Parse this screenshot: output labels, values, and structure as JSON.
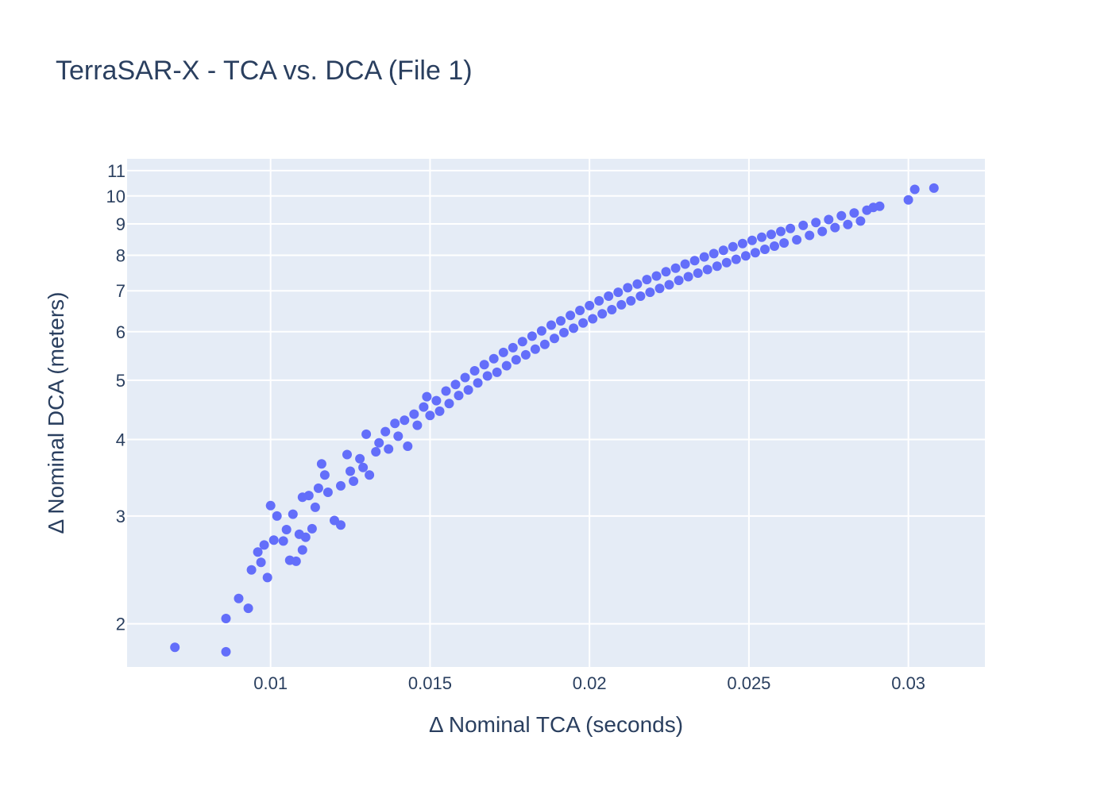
{
  "chart_data": {
    "type": "scatter",
    "title": "TerraSAR-X - TCA vs. DCA (File 1)",
    "xlabel": "Δ Nominal TCA (seconds)",
    "ylabel": "Δ Nominal DCA (meters)",
    "xlim": [
      0.0055,
      0.0324
    ],
    "ylim": [
      1.7,
      11.5
    ],
    "yscale": "log",
    "grid": true,
    "legend": "none",
    "colors": {
      "marker": "#636efa",
      "plot_bg": "#e5ecf6",
      "grid": "#ffffff"
    },
    "x_ticks": [
      {
        "value": 0.01,
        "label": "0.01"
      },
      {
        "value": 0.015,
        "label": "0.015"
      },
      {
        "value": 0.02,
        "label": "0.02"
      },
      {
        "value": 0.025,
        "label": "0.025"
      },
      {
        "value": 0.03,
        "label": "0.03"
      }
    ],
    "y_ticks": [
      {
        "value": 2,
        "label": "2"
      },
      {
        "value": 3,
        "label": "3"
      },
      {
        "value": 4,
        "label": "4"
      },
      {
        "value": 5,
        "label": "5"
      },
      {
        "value": 6,
        "label": "6"
      },
      {
        "value": 7,
        "label": "7"
      },
      {
        "value": 8,
        "label": "8"
      },
      {
        "value": 9,
        "label": "9"
      },
      {
        "value": 10,
        "label": "10"
      },
      {
        "value": 11,
        "label": "11"
      }
    ],
    "series": [
      {
        "points": [
          [
            0.007,
            1.83
          ],
          [
            0.0086,
            1.8
          ],
          [
            0.0086,
            2.04
          ],
          [
            0.009,
            2.2
          ],
          [
            0.0093,
            2.12
          ],
          [
            0.0094,
            2.45
          ],
          [
            0.0096,
            2.62
          ],
          [
            0.0097,
            2.52
          ],
          [
            0.0098,
            2.69
          ],
          [
            0.0099,
            2.38
          ],
          [
            0.01,
            3.12
          ],
          [
            0.0101,
            2.74
          ],
          [
            0.0102,
            3.0
          ],
          [
            0.0104,
            2.73
          ],
          [
            0.0105,
            2.85
          ],
          [
            0.0106,
            2.54
          ],
          [
            0.0107,
            3.02
          ],
          [
            0.0108,
            2.53
          ],
          [
            0.0109,
            2.8
          ],
          [
            0.011,
            3.22
          ],
          [
            0.011,
            2.64
          ],
          [
            0.0111,
            2.77
          ],
          [
            0.0112,
            3.24
          ],
          [
            0.0113,
            2.86
          ],
          [
            0.0114,
            3.1
          ],
          [
            0.0115,
            3.33
          ],
          [
            0.0116,
            3.65
          ],
          [
            0.0117,
            3.5
          ],
          [
            0.0118,
            3.28
          ],
          [
            0.012,
            2.95
          ],
          [
            0.0122,
            3.36
          ],
          [
            0.0122,
            2.9
          ],
          [
            0.0124,
            3.78
          ],
          [
            0.0125,
            3.55
          ],
          [
            0.0126,
            3.42
          ],
          [
            0.0128,
            3.72
          ],
          [
            0.0129,
            3.6
          ],
          [
            0.013,
            4.08
          ],
          [
            0.0131,
            3.5
          ],
          [
            0.0133,
            3.82
          ],
          [
            0.0134,
            3.95
          ],
          [
            0.0136,
            4.12
          ],
          [
            0.0137,
            3.86
          ],
          [
            0.0139,
            4.25
          ],
          [
            0.014,
            4.05
          ],
          [
            0.0142,
            4.3
          ],
          [
            0.0143,
            3.9
          ],
          [
            0.0145,
            4.4
          ],
          [
            0.0146,
            4.22
          ],
          [
            0.0148,
            4.52
          ],
          [
            0.0149,
            4.7
          ],
          [
            0.015,
            4.38
          ],
          [
            0.0152,
            4.63
          ],
          [
            0.0153,
            4.45
          ],
          [
            0.0155,
            4.8
          ],
          [
            0.0156,
            4.58
          ],
          [
            0.0158,
            4.92
          ],
          [
            0.0159,
            4.72
          ],
          [
            0.0161,
            5.05
          ],
          [
            0.0162,
            4.82
          ],
          [
            0.0164,
            5.18
          ],
          [
            0.0165,
            4.95
          ],
          [
            0.0167,
            5.3
          ],
          [
            0.0168,
            5.08
          ],
          [
            0.017,
            5.42
          ],
          [
            0.0171,
            5.15
          ],
          [
            0.0173,
            5.55
          ],
          [
            0.0174,
            5.28
          ],
          [
            0.0176,
            5.65
          ],
          [
            0.0177,
            5.4
          ],
          [
            0.0179,
            5.78
          ],
          [
            0.018,
            5.5
          ],
          [
            0.0182,
            5.9
          ],
          [
            0.0183,
            5.62
          ],
          [
            0.0185,
            6.02
          ],
          [
            0.0186,
            5.72
          ],
          [
            0.0188,
            6.15
          ],
          [
            0.0189,
            5.85
          ],
          [
            0.0191,
            6.25
          ],
          [
            0.0192,
            5.98
          ],
          [
            0.0194,
            6.38
          ],
          [
            0.0195,
            6.08
          ],
          [
            0.0197,
            6.5
          ],
          [
            0.0198,
            6.2
          ],
          [
            0.02,
            6.62
          ],
          [
            0.0201,
            6.3
          ],
          [
            0.0203,
            6.74
          ],
          [
            0.0204,
            6.42
          ],
          [
            0.0206,
            6.86
          ],
          [
            0.0207,
            6.52
          ],
          [
            0.0209,
            6.96
          ],
          [
            0.021,
            6.64
          ],
          [
            0.0212,
            7.08
          ],
          [
            0.0213,
            6.74
          ],
          [
            0.0215,
            7.18
          ],
          [
            0.0216,
            6.86
          ],
          [
            0.0218,
            7.3
          ],
          [
            0.0219,
            6.96
          ],
          [
            0.0221,
            7.4
          ],
          [
            0.0222,
            7.06
          ],
          [
            0.0224,
            7.52
          ],
          [
            0.0225,
            7.16
          ],
          [
            0.0227,
            7.62
          ],
          [
            0.0228,
            7.28
          ],
          [
            0.023,
            7.74
          ],
          [
            0.0231,
            7.38
          ],
          [
            0.0233,
            7.84
          ],
          [
            0.0234,
            7.48
          ],
          [
            0.0236,
            7.95
          ],
          [
            0.0237,
            7.58
          ],
          [
            0.0239,
            8.05
          ],
          [
            0.024,
            7.68
          ],
          [
            0.0242,
            8.15
          ],
          [
            0.0243,
            7.78
          ],
          [
            0.0245,
            8.26
          ],
          [
            0.0246,
            7.88
          ],
          [
            0.0248,
            8.36
          ],
          [
            0.0249,
            7.98
          ],
          [
            0.0251,
            8.46
          ],
          [
            0.0252,
            8.08
          ],
          [
            0.0254,
            8.56
          ],
          [
            0.0255,
            8.18
          ],
          [
            0.0257,
            8.65
          ],
          [
            0.0258,
            8.28
          ],
          [
            0.026,
            8.75
          ],
          [
            0.0261,
            8.38
          ],
          [
            0.0263,
            8.85
          ],
          [
            0.0265,
            8.48
          ],
          [
            0.0267,
            8.95
          ],
          [
            0.0269,
            8.62
          ],
          [
            0.0271,
            9.05
          ],
          [
            0.0273,
            8.75
          ],
          [
            0.0275,
            9.15
          ],
          [
            0.0277,
            8.88
          ],
          [
            0.0279,
            9.28
          ],
          [
            0.0281,
            8.98
          ],
          [
            0.0283,
            9.38
          ],
          [
            0.0285,
            9.1
          ],
          [
            0.0287,
            9.48
          ],
          [
            0.0289,
            9.58
          ],
          [
            0.0291,
            9.62
          ],
          [
            0.03,
            9.85
          ],
          [
            0.0302,
            10.25
          ],
          [
            0.0308,
            10.3
          ]
        ]
      }
    ]
  }
}
